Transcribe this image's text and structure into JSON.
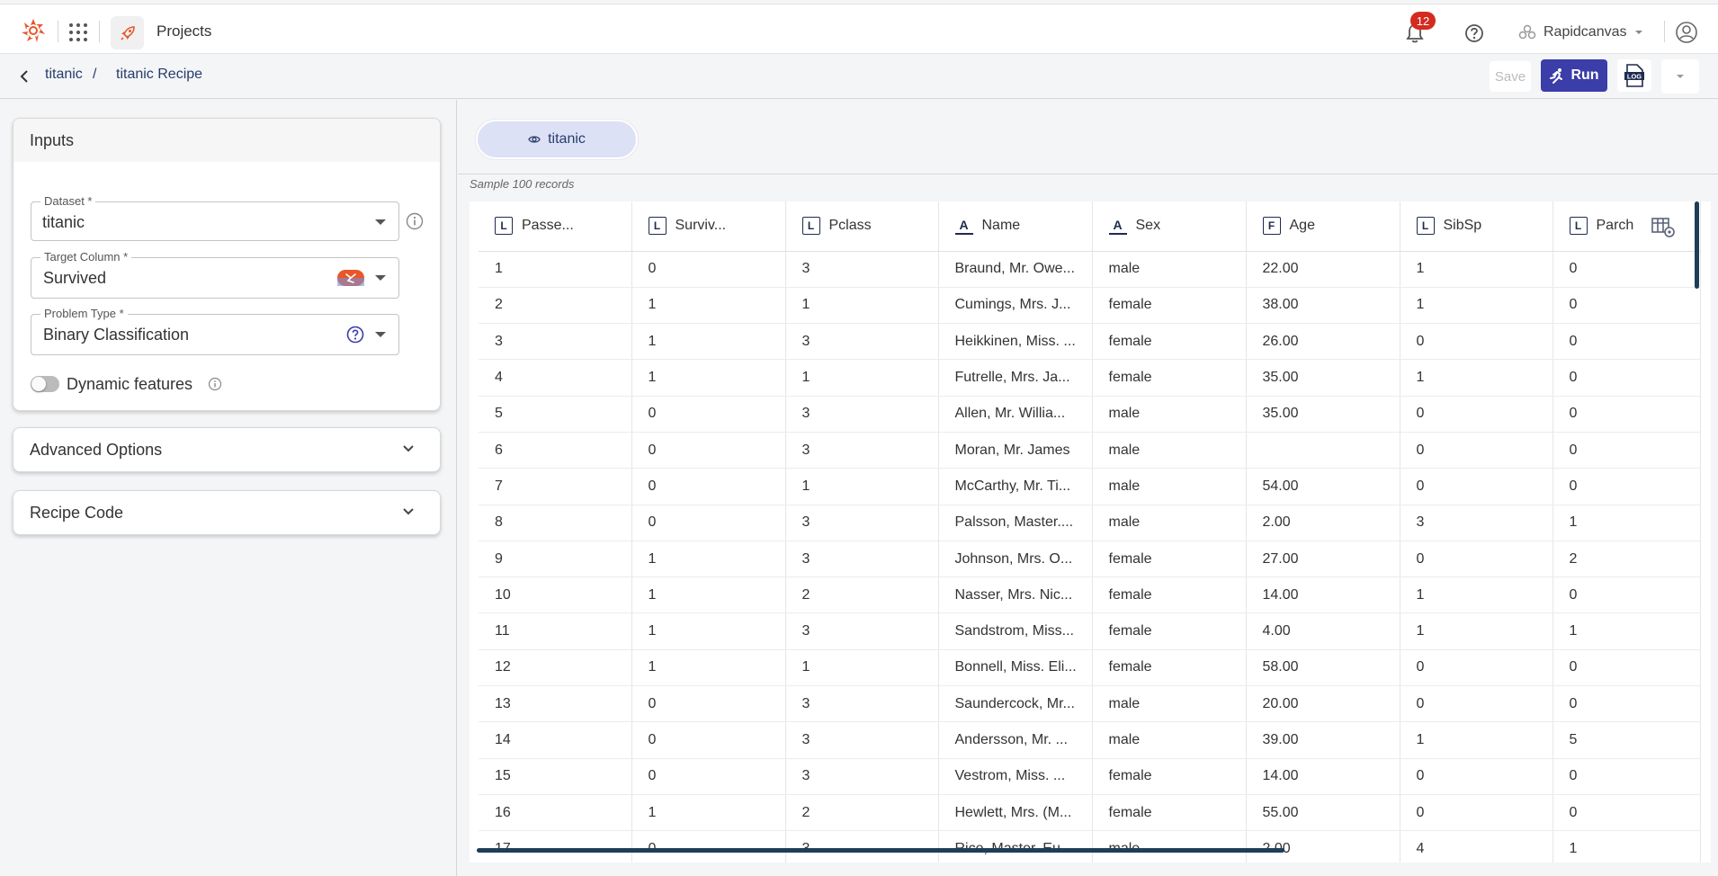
{
  "topbar": {
    "projects_label": "Projects",
    "notification_count": "12",
    "workspace_name": "Rapidcanvas"
  },
  "breadcrumb": {
    "project": "titanic",
    "separator": "/",
    "recipe": "titanic Recipe"
  },
  "actions": {
    "save_label": "Save",
    "run_label": "Run",
    "log_label": "LOG"
  },
  "inputs_card": {
    "title": "Inputs",
    "dataset": {
      "label": "Dataset *",
      "value": "titanic"
    },
    "target_column": {
      "label": "Target Column *",
      "value": "Survived"
    },
    "problem_type": {
      "label": "Problem Type *",
      "value": "Binary Classification"
    },
    "dynamic_features_label": "Dynamic features"
  },
  "advanced_options": {
    "title": "Advanced Options"
  },
  "recipe_code": {
    "title": "Recipe Code"
  },
  "dataset_tab": {
    "label": "titanic"
  },
  "sample_text": "Sample 100 records",
  "table": {
    "columns": [
      {
        "label": "Passe...",
        "type": "L"
      },
      {
        "label": "Surviv...",
        "type": "L"
      },
      {
        "label": "Pclass",
        "type": "L"
      },
      {
        "label": "Name",
        "type": "A"
      },
      {
        "label": "Sex",
        "type": "A"
      },
      {
        "label": "Age",
        "type": "F"
      },
      {
        "label": "SibSp",
        "type": "L"
      },
      {
        "label": "Parch",
        "type": "L"
      }
    ],
    "rows": [
      [
        "1",
        "0",
        "3",
        "Braund, Mr. Owe...",
        "male",
        "22.00",
        "1",
        "0"
      ],
      [
        "2",
        "1",
        "1",
        "Cumings, Mrs. J...",
        "female",
        "38.00",
        "1",
        "0"
      ],
      [
        "3",
        "1",
        "3",
        "Heikkinen, Miss. ...",
        "female",
        "26.00",
        "0",
        "0"
      ],
      [
        "4",
        "1",
        "1",
        "Futrelle, Mrs. Ja...",
        "female",
        "35.00",
        "1",
        "0"
      ],
      [
        "5",
        "0",
        "3",
        "Allen, Mr. Willia...",
        "male",
        "35.00",
        "0",
        "0"
      ],
      [
        "6",
        "0",
        "3",
        "Moran, Mr. James",
        "male",
        "",
        "0",
        "0"
      ],
      [
        "7",
        "0",
        "1",
        "McCarthy, Mr. Ti...",
        "male",
        "54.00",
        "0",
        "0"
      ],
      [
        "8",
        "0",
        "3",
        "Palsson, Master....",
        "male",
        "2.00",
        "3",
        "1"
      ],
      [
        "9",
        "1",
        "3",
        "Johnson, Mrs. O...",
        "female",
        "27.00",
        "0",
        "2"
      ],
      [
        "10",
        "1",
        "2",
        "Nasser, Mrs. Nic...",
        "female",
        "14.00",
        "1",
        "0"
      ],
      [
        "11",
        "1",
        "3",
        "Sandstrom, Miss...",
        "female",
        "4.00",
        "1",
        "1"
      ],
      [
        "12",
        "1",
        "1",
        "Bonnell, Miss. Eli...",
        "female",
        "58.00",
        "0",
        "0"
      ],
      [
        "13",
        "0",
        "3",
        "Saundercock, Mr...",
        "male",
        "20.00",
        "0",
        "0"
      ],
      [
        "14",
        "0",
        "3",
        "Andersson, Mr. ...",
        "male",
        "39.00",
        "1",
        "5"
      ],
      [
        "15",
        "0",
        "3",
        "Vestrom, Miss. ...",
        "female",
        "14.00",
        "0",
        "0"
      ],
      [
        "16",
        "1",
        "2",
        "Hewlett, Mrs. (M...",
        "female",
        "55.00",
        "0",
        "0"
      ],
      [
        "17",
        "0",
        "3",
        "Rice, Master. Eu...",
        "male",
        "2.00",
        "4",
        "1"
      ]
    ]
  },
  "colors": {
    "brand_orange": "#e8562a",
    "run_button": "#3b3da8",
    "tab_pill": "#dde1f6",
    "badge_red": "#d42b1e",
    "type_icon": "#1d2b4f"
  }
}
